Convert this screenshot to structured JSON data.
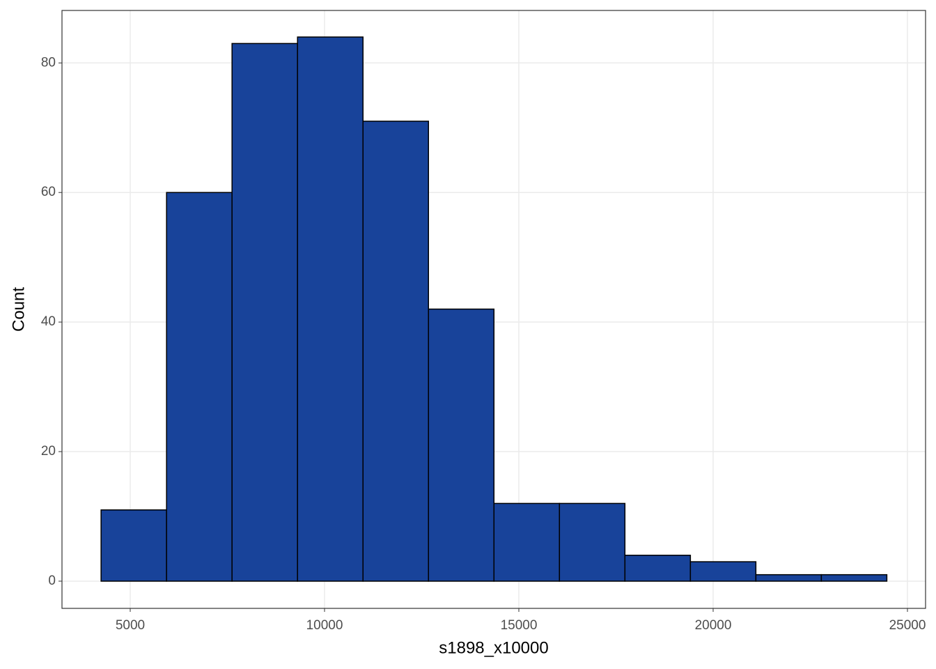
{
  "chart_data": {
    "type": "histogram",
    "x_label": "s1898_x10000",
    "y_label": "Count",
    "bins": [
      4250,
      5935,
      7620,
      9305,
      10990,
      12675,
      14360,
      16045,
      17730,
      19415,
      21100,
      22785,
      24470
    ],
    "values": [
      11,
      60,
      83,
      84,
      71,
      42,
      12,
      12,
      4,
      3,
      1,
      1
    ],
    "color": "#18439a",
    "xlim": [
      3244,
      25466
    ],
    "xticks": [
      5000,
      10000,
      15000,
      20000,
      25000
    ],
    "ylim": [
      -4.2,
      88.1
    ],
    "yticks": [
      0,
      20,
      40,
      60,
      80
    ],
    "grid": true
  }
}
